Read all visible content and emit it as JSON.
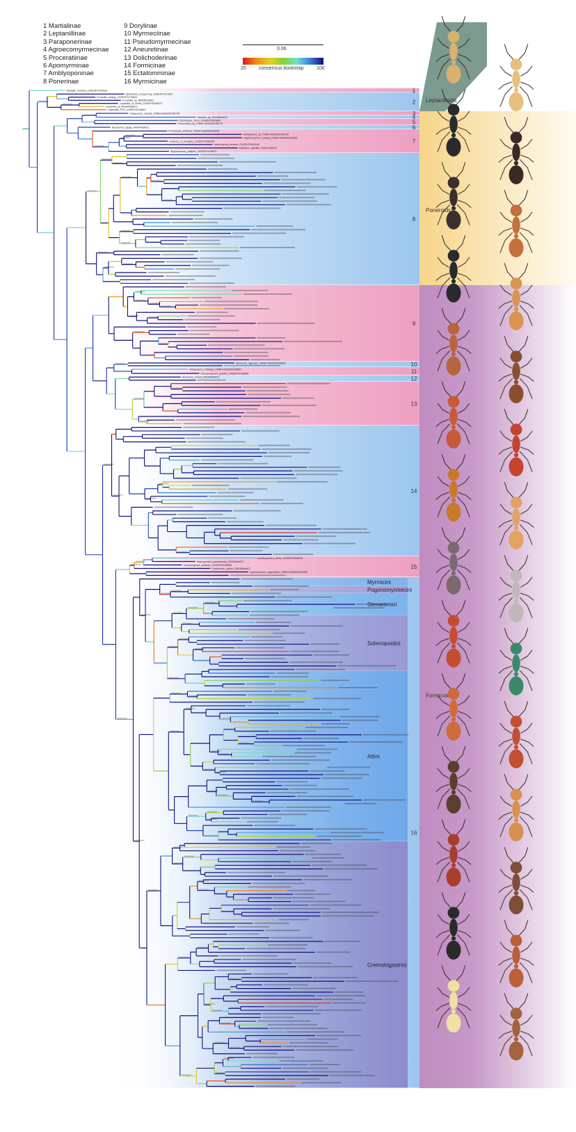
{
  "legend": {
    "col1": [
      "1  Martialinae",
      "2  Leptanillinae",
      "3  Paraponerinae",
      "4  Agroecomyrmecinae",
      "5  Proceratiinae",
      "6  Apomyrminae",
      "7  Amblyoponinae",
      "8  Ponerinae"
    ],
    "col2": [
      "9  Dorylinae",
      "10  Myrmeciinae",
      "11  Pseudomyrmecinae",
      "12  Aneuretinae",
      "13  Dolichoderinae",
      "14  Formicinae",
      "15  Ectatomminae",
      "16  Myrmicinae"
    ]
  },
  "scale_bar": {
    "label": "0.06"
  },
  "colorbar": {
    "min_label": "20",
    "title": "consensus bootstrap",
    "max_label": "100",
    "colors": [
      "#e01818",
      "#f08a1a",
      "#e0d020",
      "#8ad030",
      "#70e0d0",
      "#3a80d8",
      "#10107a"
    ]
  },
  "colors": {
    "pink_band": "#f0a8c6",
    "blue_band": "#a9cdf1",
    "leptanilloid": "#7c9b8e",
    "poneroid": "#f7d58a",
    "formicoid": "#bf8cc1"
  },
  "clades": [
    {
      "num": "1",
      "y": [
        127,
        133
      ],
      "tips": [
        "Martialis_heureka_CASENT0106181"
      ]
    },
    {
      "num": "2",
      "y": [
        133,
        160
      ],
      "tips": [
        "Opamyrma_hungvuong_CASENT0172637",
        "Protanilla_beijing_CASENT0178404",
        "Protanilla_sp_RA0467aMCZ",
        "Leptanilla_cf_mv08_CASENT0106373",
        "Leptanilla_sp_RA0440aMCZ",
        "Leptanilla_RG2_CASENT0118601"
      ]
    },
    {
      "num": "3",
      "y": [
        160,
        166
      ],
      "tips": [
        "Paraponera_clavata_FMNH-INS0000106776"
      ]
    },
    {
      "num": "4",
      "y": [
        166,
        171
      ],
      "tips": [
        "Tatuidris_sp_RA0368aMCZ"
      ]
    },
    {
      "num": "5",
      "y": [
        171,
        180
      ],
      "tips": [
        "Discothyrea_horni_CASENT0003669",
        "Proceratium_sp_FMNH-INS0000106775"
      ]
    },
    {
      "num": "6",
      "y": [
        180,
        186
      ],
      "tips": [
        "Apomyrma_stygia_RA0478aMCZ"
      ]
    },
    {
      "num": "7",
      "y": [
        186,
        220
      ],
      "tips": [
        "Prionopelta_antillana_FMNH-INS0000106495",
        "Amblyopone_sp_FMNH-INS0000106790",
        "Onychomyrmex_hedleyi_FMNH-INS0000106522",
        "Fulakora_cf_elongata_CASENT0006998",
        "Adetomyrma_venatrix_CASENT0000106",
        "Mystrium_camillae_RA0314aMCZ",
        "Stigmatomma_pallipes_CASENT0106071"
      ]
    },
    {
      "num": "8",
      "y": [
        220,
        410
      ],
      "tips": []
    },
    {
      "num": "9",
      "y": [
        410,
        520
      ],
      "tips": []
    },
    {
      "num": "10",
      "y": [
        520,
        528
      ],
      "tips": [
        "Myrmecia_nigriceps_FMNH-INS0000106530"
      ]
    },
    {
      "num": "11",
      "y": [
        528,
        540
      ],
      "tips": [
        "Tetraponera_rufonigra_FMNH-INS0000106591",
        "Pseudomyrmex_gracilis_CASENT0106068"
      ]
    },
    {
      "num": "12",
      "y": [
        540,
        549
      ],
      "tips": [
        "Aneuretus_simoni_RA0459aMCZ"
      ]
    },
    {
      "num": "13",
      "y": [
        549,
        612
      ],
      "tips": []
    },
    {
      "num": "14",
      "y": [
        612,
        800
      ],
      "tips": []
    },
    {
      "num": "15",
      "y": [
        800,
        830
      ],
      "tips": [
        "Acanthoponera_minor_CASENT0106030",
        "Heteroponera_panamensis_RA0340aMCZ",
        "Gnamptogenys_striatula_CASENT0106080",
        "Ectatomma_ruidum_RA0454aMCZ",
        "Typhlomyrmex_rogenhoferi_FMNH-INS0000106453"
      ]
    },
    {
      "num": "16",
      "y": [
        830,
        1565
      ],
      "tips": []
    }
  ],
  "tribes": [
    {
      "label": "Myrmicini",
      "y": [
        831,
        843
      ],
      "color": "#7fb1ea"
    },
    {
      "label": "Pogonomyrmecini",
      "y": [
        843,
        853
      ],
      "color": "#a79bd2"
    },
    {
      "label": "Stenammini",
      "y": [
        853,
        885
      ],
      "color": "#7db3ee"
    },
    {
      "label": "Solenopsidini",
      "y": [
        885,
        965
      ],
      "color": "#9b98d4"
    },
    {
      "label": "Attini",
      "y": [
        965,
        1210
      ],
      "color": "#6ea8ea"
    },
    {
      "label": "Crematogastrini",
      "y": [
        1210,
        1565
      ],
      "color": "#8d8ccb"
    }
  ],
  "groups": [
    {
      "label": "Leptanilloids",
      "y": 147
    },
    {
      "label": "Poneroids",
      "y": 305
    },
    {
      "label": "Formicoids",
      "y": 1003
    }
  ],
  "ants": {
    "col1": [
      "#d9b06e",
      "#2b2a2a",
      "#3a302e",
      "#2a2a2c",
      "#b8643e",
      "#c65a38",
      "#c9782e",
      "#7a6a70",
      "#c24d30",
      "#cf6a3c",
      "#5a3e30",
      "#a83e2e",
      "#2a2a2a",
      "#efe0a4"
    ],
    "col2": [
      "#e6c07e",
      "#3a2a26",
      "#c2703e",
      "#d99450",
      "#8a4e30",
      "#c4442e",
      "#e2a262",
      "#c0b8b8",
      "#3a8a6a",
      "#c35032",
      "#d8904e",
      "#7e4e36",
      "#b8603a",
      "#a6623c"
    ]
  }
}
